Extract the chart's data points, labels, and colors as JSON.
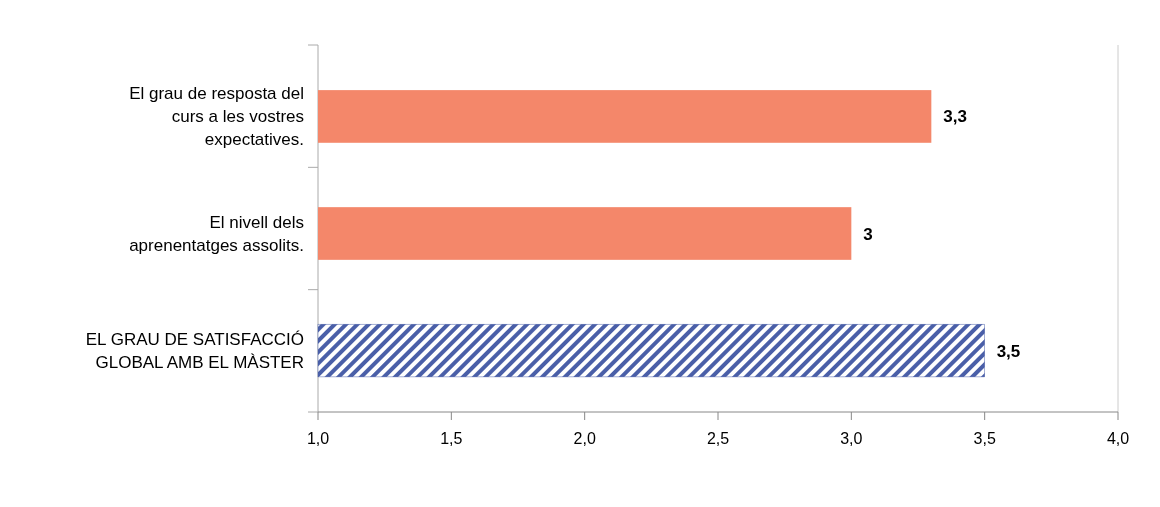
{
  "chart_data": {
    "type": "bar",
    "orientation": "horizontal",
    "categories": [
      "El grau de resposta del curs a les vostres expectatives.",
      "El nivell dels aprenentatges assolits.",
      "EL GRAU DE SATISFACCIÓ GLOBAL AMB EL MÀSTER"
    ],
    "values": [
      3.3,
      3,
      3.5
    ],
    "value_labels": [
      "3,3",
      "3",
      "3,5"
    ],
    "colors": [
      "#f4876a",
      "#f4876a",
      "#4a5fa8"
    ],
    "xlim": [
      1,
      4
    ],
    "xticks": [
      {
        "value": 1,
        "label": "1,0"
      },
      {
        "value": 1.5,
        "label": "1,5"
      },
      {
        "value": 2,
        "label": "2,0"
      },
      {
        "value": 2.5,
        "label": "2,5"
      },
      {
        "value": 3,
        "label": "3,0"
      },
      {
        "value": 3.5,
        "label": "3,5"
      },
      {
        "value": 4,
        "label": "4,0"
      }
    ],
    "grid": false
  }
}
